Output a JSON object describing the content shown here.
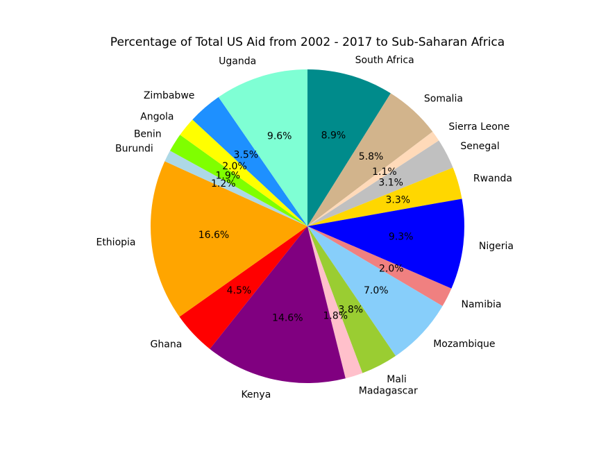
{
  "chart_data": {
    "type": "pie",
    "title": "Percentage of Total US Aid from 2002 - 2017 to Sub-Saharan Africa",
    "start_angle_deg": 90,
    "direction": "clockwise",
    "slices": [
      {
        "label": "South Africa",
        "value": 8.9,
        "pct_text": "8.9%",
        "color": "#008B8B"
      },
      {
        "label": "Somalia",
        "value": 5.8,
        "pct_text": "5.8%",
        "color": "#D2B48C"
      },
      {
        "label": "Sierra Leone",
        "value": 1.1,
        "pct_text": "1.1%",
        "color": "#FFDAB9"
      },
      {
        "label": "Senegal",
        "value": 3.1,
        "pct_text": "3.1%",
        "color": "#C0C0C0"
      },
      {
        "label": "Rwanda",
        "value": 3.3,
        "pct_text": "3.3%",
        "color": "#FFD700"
      },
      {
        "label": "Nigeria",
        "value": 9.3,
        "pct_text": "9.3%",
        "color": "#0000FF"
      },
      {
        "label": "Namibia",
        "value": 2.0,
        "pct_text": "2.0%",
        "color": "#F08080"
      },
      {
        "label": "Mozambique",
        "value": 7.0,
        "pct_text": "7.0%",
        "color": "#87CEFA"
      },
      {
        "label": "Mali",
        "value": 3.8,
        "pct_text": "3.8%",
        "color": "#9ACD32"
      },
      {
        "label": "Madagascar",
        "value": 1.8,
        "pct_text": "1.8%",
        "color": "#FFC0CB"
      },
      {
        "label": "Kenya",
        "value": 14.6,
        "pct_text": "14.6%",
        "color": "#800080"
      },
      {
        "label": "Ghana",
        "value": 4.5,
        "pct_text": "4.5%",
        "color": "#FF0000"
      },
      {
        "label": "Ethiopia",
        "value": 16.6,
        "pct_text": "16.6%",
        "color": "#FFA500"
      },
      {
        "label": "Burundi",
        "value": 1.2,
        "pct_text": "1.2%",
        "color": "#ADD8E6"
      },
      {
        "label": "Benin",
        "value": 1.9,
        "pct_text": "1.9%",
        "color": "#7FFF00"
      },
      {
        "label": "Angola",
        "value": 2.0,
        "pct_text": "2.0%",
        "color": "#FFFF00"
      },
      {
        "label": "Zimbabwe",
        "value": 3.5,
        "pct_text": "3.5%",
        "color": "#1E90FF"
      },
      {
        "label": "Uganda",
        "value": 9.6,
        "pct_text": "9.6%",
        "color": "#7FFFD4"
      }
    ]
  }
}
